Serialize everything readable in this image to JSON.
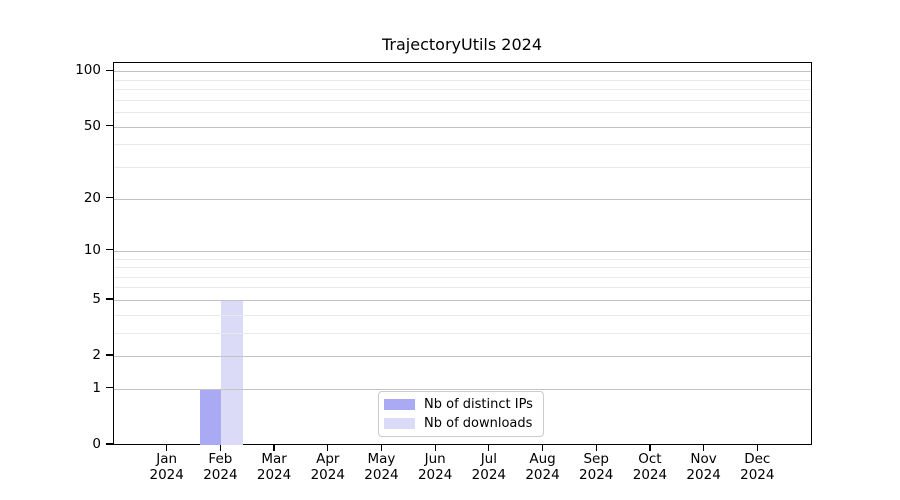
{
  "chart_data": {
    "type": "bar",
    "title": "TrajectoryUtils 2024",
    "categories": [
      "Jan",
      "Feb",
      "Mar",
      "Apr",
      "May",
      "Jun",
      "Jul",
      "Aug",
      "Sep",
      "Oct",
      "Nov",
      "Dec"
    ],
    "year_label": "2024",
    "series": [
      {
        "name": "Nb of distinct IPs",
        "color": "#a9a9f4",
        "values": [
          0,
          1,
          0,
          0,
          0,
          0,
          0,
          0,
          0,
          0,
          0,
          0
        ]
      },
      {
        "name": "Nb of downloads",
        "color": "#dbdbf8",
        "values": [
          0,
          5,
          0,
          0,
          0,
          0,
          0,
          0,
          0,
          0,
          0,
          0
        ]
      }
    ],
    "yscale": "log1p",
    "ylim": [
      0,
      111
    ],
    "yticks": [
      0,
      1,
      2,
      5,
      10,
      20,
      50,
      100
    ],
    "minor_yticks": [
      3,
      4,
      6,
      7,
      8,
      9,
      30,
      40,
      60,
      70,
      80,
      90
    ],
    "grid": true,
    "legend": {
      "entries": [
        "Nb of distinct IPs",
        "Nb of downloads"
      ],
      "position": "lower-center"
    },
    "colors": {
      "axis": "#000000",
      "major_grid": "#c3c3c3",
      "minor_grid": "#e9e9e9",
      "background": "#ffffff",
      "legend_border": "#cccccc"
    }
  }
}
